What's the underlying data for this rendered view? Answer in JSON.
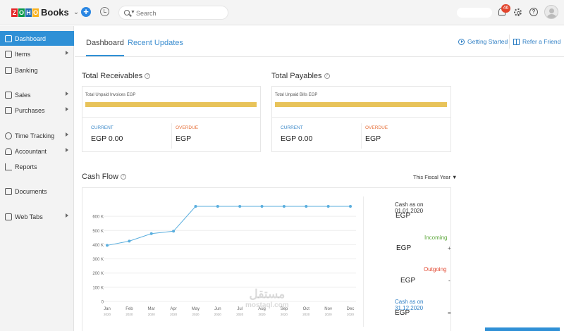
{
  "app": {
    "logo_letters": [
      "Z",
      "O",
      "H",
      "O"
    ],
    "logo_colors": [
      "#e42527",
      "#089949",
      "#226db4",
      "#f9b21d"
    ],
    "logo_text": "Books"
  },
  "topbar": {
    "search_placeholder": "Search",
    "notification_count": "46"
  },
  "sidebar": {
    "items": [
      {
        "label": "Dashboard",
        "icon": "dashboard-icon",
        "active": true,
        "arrow": false
      },
      {
        "label": "Items",
        "icon": "items-icon",
        "active": false,
        "arrow": true
      },
      {
        "label": "Banking",
        "icon": "bank-icon",
        "active": false,
        "arrow": false
      },
      {
        "label": "Sales",
        "icon": "cart-icon",
        "active": false,
        "arrow": true
      },
      {
        "label": "Purchases",
        "icon": "bag-icon",
        "active": false,
        "arrow": true
      },
      {
        "label": "Time Tracking",
        "icon": "clock-icon",
        "active": false,
        "arrow": true
      },
      {
        "label": "Accountant",
        "icon": "person-icon",
        "active": false,
        "arrow": true
      },
      {
        "label": "Reports",
        "icon": "chart-icon",
        "active": false,
        "arrow": false
      },
      {
        "label": "Documents",
        "icon": "folder-icon",
        "active": false,
        "arrow": false
      },
      {
        "label": "Web Tabs",
        "icon": "web-tabs-icon",
        "active": false,
        "arrow": true
      }
    ]
  },
  "header": {
    "tabs": [
      {
        "label": "Dashboard",
        "active": true
      },
      {
        "label": "Recent Updates",
        "active": false
      }
    ],
    "getting_started": "Getting Started",
    "refer_friend": "Refer a Friend"
  },
  "receivables": {
    "title": "Total Receivables",
    "subtitle": "Total Unpaid Invoices EGP",
    "current_label": "CURRENT",
    "current_value": "EGP 0.00",
    "overdue_label": "OVERDUE",
    "overdue_value": "EGP"
  },
  "payables": {
    "title": "Total Payables",
    "subtitle": "Total Unpaid Bills EGP",
    "current_label": "CURRENT",
    "current_value": "EGP 0.00",
    "overdue_label": "OVERDUE",
    "overdue_value": "EGP"
  },
  "cashflow": {
    "title": "Cash Flow",
    "period": "This Fiscal Year",
    "opening_label": "Cash as on 01.01.2020",
    "opening_value": "EGP",
    "incoming_label": "Incoming",
    "incoming_value": "EGP",
    "incoming_sign": "+",
    "outgoing_label": "Outgoing",
    "outgoing_value": "EGP",
    "outgoing_sign": "-",
    "closing_label": "Cash as on 31.12.2020",
    "closing_value": "EGP",
    "closing_sign": "="
  },
  "colors": {
    "accent": "#2f90d6",
    "bar": "#e8c35a",
    "incoming": "#5ea83c",
    "outgoing": "#e2452d"
  },
  "watermark": {
    "line1": "مستقل",
    "line2": "mostaql.com"
  },
  "chart_data": {
    "type": "line",
    "categories": [
      "Jan",
      "Feb",
      "Mar",
      "Apr",
      "May",
      "Jun",
      "Jul",
      "Aug",
      "Sep",
      "Oct",
      "Nov",
      "Dec"
    ],
    "category_years": [
      "2020",
      "2020",
      "2020",
      "2020",
      "2020",
      "2020",
      "2020",
      "2020",
      "2020",
      "2020",
      "2020",
      "2020"
    ],
    "values": [
      395,
      425,
      478,
      495,
      670,
      670,
      670,
      670,
      670,
      670,
      670,
      670
    ],
    "yticks": [
      0,
      100,
      200,
      300,
      400,
      500,
      600
    ],
    "ytick_labels": [
      "0",
      "100 K",
      "200 K",
      "300 K",
      "400 K",
      "500 K",
      "600 K"
    ],
    "ylim": [
      0,
      700
    ],
    "grid": true,
    "line_color": "#5aaede"
  }
}
